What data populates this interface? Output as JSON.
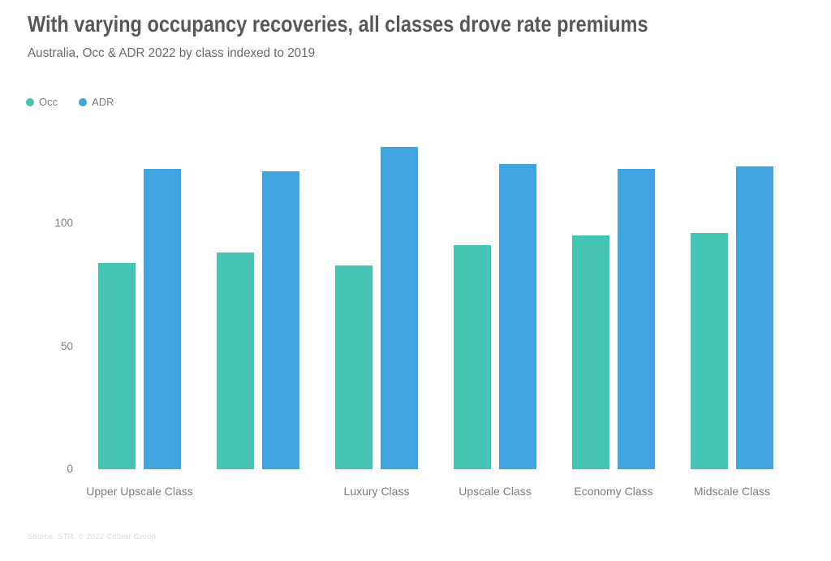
{
  "header": {
    "title": "With varying occupancy recoveries, all classes drove rate premiums",
    "subtitle": "Australia, Occ & ADR 2022 by class indexed to 2019"
  },
  "legend": {
    "items": [
      {
        "label": "Occ",
        "color": "#45c3b3"
      },
      {
        "label": "ADR",
        "color": "#41a4e0"
      }
    ]
  },
  "footer": {
    "source": "Source: STR. © 2022 CoStar Group"
  },
  "chart_data": {
    "type": "bar",
    "title": "With varying occupancy recoveries, all classes drove rate premiums",
    "subtitle": "Australia, Occ & ADR 2022 by class indexed to 2019",
    "categories": [
      "Upper Upscale Class",
      "",
      "Luxury Class",
      "Upscale Class",
      "Economy Class",
      "Midscale Class"
    ],
    "series": [
      {
        "name": "Occ",
        "color": "#45c3b3",
        "values": [
          84,
          88,
          83,
          91,
          95,
          96
        ]
      },
      {
        "name": "ADR",
        "color": "#41a4e0",
        "values": [
          122,
          121,
          131,
          124,
          122,
          123
        ]
      }
    ],
    "yticks": [
      0,
      50,
      100
    ],
    "ylim": [
      0,
      138
    ],
    "grid": false,
    "legend_position": "top-left",
    "baseline": 100,
    "note": "values indexed to 2019 = 100"
  }
}
